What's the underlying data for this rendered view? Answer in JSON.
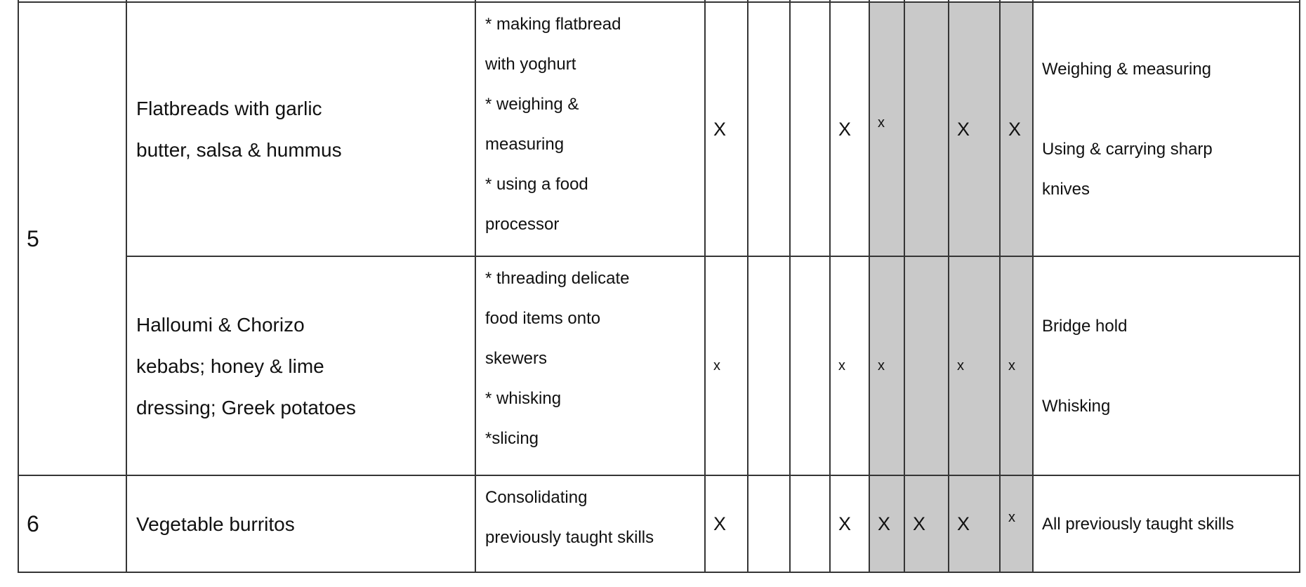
{
  "table": {
    "border_color": "#353535",
    "shade_color": "#c9c9c9",
    "rows": [
      {
        "week": "5",
        "dishes": [
          {
            "name": "Flatbreads with garlic\nbutter, salsa & hummus",
            "skills": "* making flatbread\nwith yoghurt\n* weighing &\nmeasuring\n* using a food\nprocessor",
            "marks": [
              "X",
              "",
              "",
              "X",
              "x",
              "",
              "X",
              "X"
            ],
            "key_skills": "Weighing & measuring\n\nUsing & carrying sharp\nknives"
          },
          {
            "name": "Halloumi & Chorizo\nkebabs; honey & lime\ndressing; Greek potatoes",
            "skills": "* threading delicate\nfood items onto\nskewers\n* whisking\n*slicing",
            "marks": [
              "x",
              "",
              "",
              "x",
              "x",
              "",
              "x",
              "x"
            ],
            "key_skills": "Bridge hold\n\nWhisking"
          }
        ]
      },
      {
        "week": "6",
        "dishes": [
          {
            "name": "Vegetable burritos",
            "skills": "Consolidating\npreviously taught skills",
            "marks": [
              "X",
              "",
              "",
              "X",
              "X",
              "X",
              "X",
              "x"
            ],
            "key_skills": "All previously taught skills"
          }
        ]
      }
    ]
  }
}
